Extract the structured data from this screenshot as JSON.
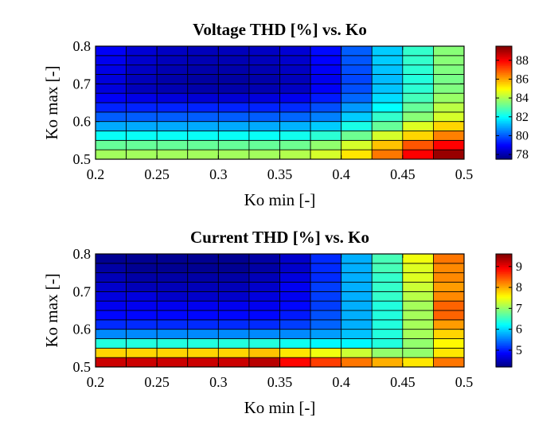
{
  "chart_data": [
    {
      "type": "heatmap",
      "title": "Voltage THD [%] vs. Ko",
      "xlabel": "Ko min [-]",
      "ylabel": "Ko max [-]",
      "x_ticks": [
        "0.2",
        "0.25",
        "0.3",
        "0.35",
        "0.4",
        "0.45",
        "0.5"
      ],
      "y_ticks": [
        "0.5",
        "0.6",
        "0.7",
        "0.8"
      ],
      "xlim": [
        0.2,
        0.5
      ],
      "ylim": [
        0.5,
        0.8
      ],
      "colorbar": {
        "min": 77.5,
        "max": 89.5,
        "ticks": [
          "78",
          "80",
          "82",
          "84",
          "86",
          "88"
        ],
        "colormap": "jet"
      },
      "grid_rows_bottom_to_top": [
        [
          83.9,
          83.9,
          83.9,
          83.9,
          83.9,
          83.9,
          84.1,
          84.5,
          85.3,
          86.6,
          88.0,
          89.2
        ],
        [
          83.2,
          83.2,
          83.2,
          83.2,
          83.2,
          83.2,
          83.3,
          83.7,
          84.5,
          85.7,
          87.0,
          88.0
        ],
        [
          82.1,
          82.1,
          82.1,
          82.1,
          82.1,
          82.1,
          82.2,
          82.5,
          83.3,
          84.5,
          85.5,
          86.5
        ],
        [
          81.0,
          81.0,
          81.0,
          81.0,
          81.0,
          81.0,
          81.1,
          81.4,
          82.3,
          83.2,
          84.6,
          85.5
        ],
        [
          80.1,
          80.1,
          80.1,
          80.1,
          80.1,
          80.1,
          80.2,
          80.5,
          81.4,
          82.6,
          83.6,
          84.5
        ],
        [
          79.4,
          79.4,
          79.4,
          79.4,
          79.4,
          79.4,
          79.5,
          79.9,
          80.8,
          82.0,
          83.2,
          84.2
        ],
        [
          78.9,
          78.7,
          78.6,
          78.5,
          78.5,
          78.6,
          78.8,
          79.3,
          80.2,
          81.6,
          82.8,
          83.8
        ],
        [
          78.6,
          78.2,
          78.1,
          78.0,
          78.0,
          78.1,
          78.3,
          78.9,
          79.9,
          81.3,
          82.5,
          83.5
        ],
        [
          78.6,
          78.2,
          78.0,
          77.9,
          77.9,
          78.0,
          78.2,
          78.8,
          79.8,
          81.2,
          82.4,
          83.4
        ],
        [
          78.7,
          78.3,
          78.1,
          78.0,
          78.0,
          78.1,
          78.3,
          78.9,
          79.9,
          81.3,
          82.5,
          83.5
        ],
        [
          78.8,
          78.4,
          78.2,
          78.1,
          78.1,
          78.2,
          78.4,
          79.0,
          80.0,
          81.4,
          82.6,
          83.6
        ],
        [
          78.9,
          78.5,
          78.3,
          78.2,
          78.2,
          78.3,
          78.5,
          79.1,
          80.1,
          81.4,
          82.6,
          83.6
        ]
      ]
    },
    {
      "type": "heatmap",
      "title": "Current THD [%] vs. Ko",
      "xlabel": "Ko min [-]",
      "ylabel": "Ko max [-]",
      "x_ticks": [
        "0.2",
        "0.25",
        "0.3",
        "0.35",
        "0.4",
        "0.45",
        "0.5"
      ],
      "y_ticks": [
        "0.5",
        "0.6",
        "0.7",
        "0.8"
      ],
      "xlim": [
        0.2,
        0.5
      ],
      "ylim": [
        0.5,
        0.8
      ],
      "colorbar": {
        "min": 4.2,
        "max": 9.6,
        "ticks": [
          "5",
          "6",
          "7",
          "8",
          "9"
        ],
        "colormap": "jet"
      },
      "grid_rows_bottom_to_top": [
        [
          9.2,
          9.2,
          9.2,
          9.2,
          9.2,
          9.3,
          8.9,
          8.6,
          8.3,
          8.0,
          7.7,
          8.3
        ],
        [
          7.8,
          7.8,
          7.8,
          7.8,
          7.8,
          7.9,
          7.7,
          7.5,
          7.3,
          7.0,
          7.0,
          7.7
        ],
        [
          6.4,
          6.4,
          6.4,
          6.4,
          6.4,
          6.4,
          6.3,
          6.2,
          6.2,
          6.4,
          7.0,
          7.6
        ],
        [
          5.6,
          5.6,
          5.6,
          5.6,
          5.6,
          5.6,
          5.6,
          5.7,
          5.9,
          6.4,
          7.1,
          7.8
        ],
        [
          5.1,
          5.1,
          5.1,
          5.1,
          5.1,
          5.1,
          5.2,
          5.4,
          5.8,
          6.4,
          7.1,
          8.1
        ],
        [
          4.9,
          4.9,
          4.9,
          4.9,
          4.9,
          4.9,
          5.0,
          5.3,
          5.8,
          6.4,
          7.1,
          8.4
        ],
        [
          4.8,
          4.8,
          4.8,
          4.8,
          4.8,
          4.8,
          4.9,
          5.2,
          5.8,
          6.4,
          7.1,
          8.4
        ],
        [
          4.7,
          4.7,
          4.6,
          4.6,
          4.6,
          4.7,
          4.8,
          5.2,
          5.8,
          6.5,
          7.2,
          8.2
        ],
        [
          4.6,
          4.5,
          4.5,
          4.5,
          4.5,
          4.6,
          4.8,
          5.2,
          5.8,
          6.5,
          7.3,
          8.1
        ],
        [
          4.5,
          4.4,
          4.4,
          4.4,
          4.4,
          4.5,
          4.7,
          5.1,
          5.8,
          6.5,
          7.4,
          8.2
        ],
        [
          4.4,
          4.3,
          4.3,
          4.3,
          4.3,
          4.4,
          4.6,
          5.1,
          5.8,
          6.6,
          7.4,
          8.2
        ],
        [
          4.3,
          4.3,
          4.3,
          4.3,
          4.3,
          4.4,
          4.6,
          5.1,
          5.8,
          6.6,
          7.5,
          8.3
        ]
      ]
    }
  ]
}
